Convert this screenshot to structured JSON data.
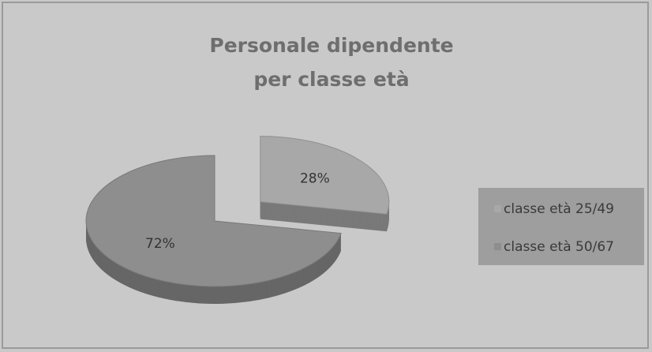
{
  "chart_data": {
    "type": "pie",
    "title": "Personale dipendente per classe età",
    "categories": [
      "classe età 25/49",
      "classe età 50/67"
    ],
    "values": [
      28,
      72
    ],
    "value_labels": [
      "28%",
      "72%"
    ],
    "colors": [
      "#a8a8a8",
      "#8e8e8e"
    ],
    "legend": "right"
  }
}
